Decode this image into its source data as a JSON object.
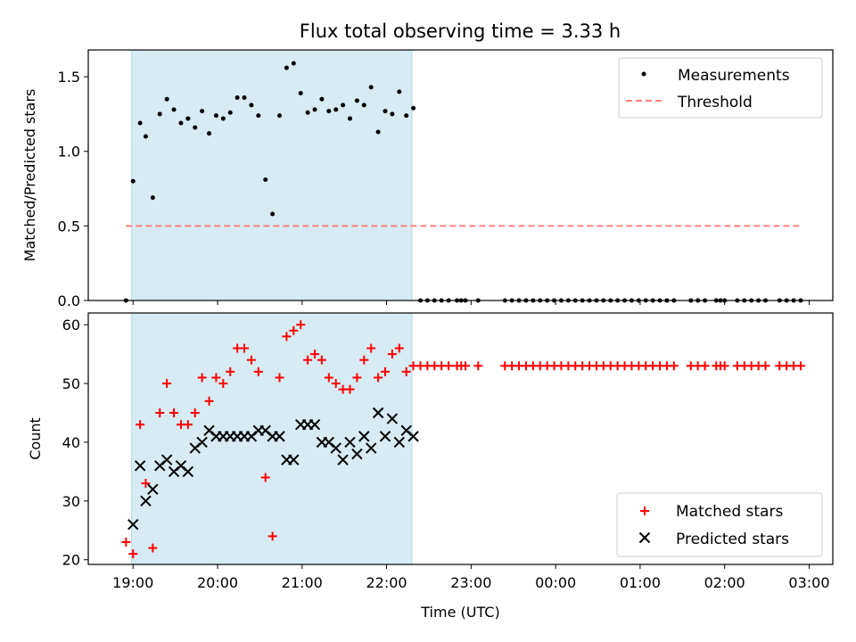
{
  "colors": {
    "highlight": "#add8e6",
    "threshold": "#ff7f7f",
    "measurements": "#000000",
    "matched": "#ff0000",
    "predicted": "#000000"
  },
  "chart_data": [
    {
      "type": "scatter",
      "title": "Flux total observing time = 3.33 h",
      "ylabel": "Matched/Predicted stars",
      "xlabel": "",
      "ylim": [
        0,
        1.68
      ],
      "yticks": [
        "0.0",
        "0.5",
        "1.0",
        "1.5"
      ],
      "grid": false,
      "legend_position": "top-right",
      "highlight_span": [
        "18:59",
        "22:18"
      ],
      "threshold": {
        "name": "Threshold",
        "value": 0.5,
        "x_range": [
          "18:55",
          "02:55"
        ]
      },
      "series": [
        {
          "name": "Measurements",
          "marker": "dot",
          "points": [
            [
              "18:55",
              0.0
            ],
            [
              "19:00",
              0.8
            ],
            [
              "19:05",
              1.19
            ],
            [
              "19:09",
              1.1
            ],
            [
              "19:14",
              0.69
            ],
            [
              "19:19",
              1.25
            ],
            [
              "19:24",
              1.35
            ],
            [
              "19:29",
              1.28
            ],
            [
              "19:34",
              1.19
            ],
            [
              "19:39",
              1.22
            ],
            [
              "19:44",
              1.16
            ],
            [
              "19:49",
              1.27
            ],
            [
              "19:54",
              1.12
            ],
            [
              "19:59",
              1.24
            ],
            [
              "20:04",
              1.22
            ],
            [
              "20:09",
              1.26
            ],
            [
              "20:14",
              1.36
            ],
            [
              "20:19",
              1.36
            ],
            [
              "20:24",
              1.31
            ],
            [
              "20:29",
              1.24
            ],
            [
              "20:34",
              0.81
            ],
            [
              "20:39",
              0.58
            ],
            [
              "20:44",
              1.24
            ],
            [
              "20:49",
              1.56
            ],
            [
              "20:54",
              1.59
            ],
            [
              "20:59",
              1.39
            ],
            [
              "21:04",
              1.26
            ],
            [
              "21:09",
              1.28
            ],
            [
              "21:14",
              1.35
            ],
            [
              "21:19",
              1.27
            ],
            [
              "21:24",
              1.28
            ],
            [
              "21:29",
              1.31
            ],
            [
              "21:34",
              1.22
            ],
            [
              "21:39",
              1.34
            ],
            [
              "21:44",
              1.31
            ],
            [
              "21:49",
              1.43
            ],
            [
              "21:54",
              1.13
            ],
            [
              "21:59",
              1.27
            ],
            [
              "22:04",
              1.25
            ],
            [
              "22:09",
              1.4
            ],
            [
              "22:14",
              1.24
            ],
            [
              "22:19",
              1.29
            ],
            [
              "22:24",
              0
            ],
            [
              "22:29",
              0
            ],
            [
              "22:34",
              0
            ],
            [
              "22:39",
              0
            ],
            [
              "22:44",
              0
            ],
            [
              "22:50",
              0
            ],
            [
              "22:53",
              0
            ],
            [
              "22:56",
              0
            ],
            [
              "23:05",
              0
            ],
            [
              "23:24",
              0
            ],
            [
              "23:29",
              0
            ],
            [
              "23:34",
              0
            ],
            [
              "23:39",
              0
            ],
            [
              "23:44",
              0
            ],
            [
              "23:49",
              0
            ],
            [
              "23:54",
              0
            ],
            [
              "23:59",
              0
            ],
            [
              "00:04",
              0
            ],
            [
              "00:09",
              0
            ],
            [
              "00:14",
              0
            ],
            [
              "00:19",
              0
            ],
            [
              "00:24",
              0
            ],
            [
              "00:29",
              0
            ],
            [
              "00:34",
              0
            ],
            [
              "00:39",
              0
            ],
            [
              "00:44",
              0
            ],
            [
              "00:49",
              0
            ],
            [
              "00:54",
              0
            ],
            [
              "00:59",
              0
            ],
            [
              "01:04",
              0
            ],
            [
              "01:09",
              0
            ],
            [
              "01:14",
              0
            ],
            [
              "01:19",
              0
            ],
            [
              "01:24",
              0
            ],
            [
              "01:36",
              0
            ],
            [
              "01:41",
              0
            ],
            [
              "01:46",
              0
            ],
            [
              "01:54",
              0
            ],
            [
              "01:57",
              0
            ],
            [
              "02:00",
              0
            ],
            [
              "02:09",
              0
            ],
            [
              "02:14",
              0
            ],
            [
              "02:19",
              0
            ],
            [
              "02:24",
              0
            ],
            [
              "02:29",
              0
            ],
            [
              "02:39",
              0
            ],
            [
              "02:44",
              0
            ],
            [
              "02:49",
              0
            ],
            [
              "02:54",
              0
            ]
          ]
        }
      ]
    },
    {
      "type": "scatter",
      "title": "",
      "ylabel": "Count",
      "xlabel": "Time (UTC)",
      "ylim": [
        19.2,
        62
      ],
      "yticks": [
        "20",
        "30",
        "40",
        "50",
        "60"
      ],
      "xticks": [
        "19:00",
        "20:00",
        "21:00",
        "22:00",
        "23:00",
        "00:00",
        "01:00",
        "02:00",
        "03:00"
      ],
      "grid": false,
      "legend_position": "bottom-right",
      "highlight_span": [
        "18:59",
        "22:18"
      ],
      "series": [
        {
          "name": "Matched stars",
          "marker": "plus",
          "points": [
            [
              "18:55",
              23
            ],
            [
              "19:00",
              21
            ],
            [
              "19:05",
              43
            ],
            [
              "19:09",
              33
            ],
            [
              "19:14",
              22
            ],
            [
              "19:19",
              45
            ],
            [
              "19:24",
              50
            ],
            [
              "19:29",
              45
            ],
            [
              "19:34",
              43
            ],
            [
              "19:39",
              43
            ],
            [
              "19:44",
              45
            ],
            [
              "19:49",
              51
            ],
            [
              "19:54",
              47
            ],
            [
              "19:59",
              51
            ],
            [
              "20:04",
              50
            ],
            [
              "20:09",
              52
            ],
            [
              "20:14",
              56
            ],
            [
              "20:19",
              56
            ],
            [
              "20:24",
              54
            ],
            [
              "20:29",
              52
            ],
            [
              "20:34",
              34
            ],
            [
              "20:39",
              24
            ],
            [
              "20:44",
              51
            ],
            [
              "20:49",
              58
            ],
            [
              "20:54",
              59
            ],
            [
              "20:59",
              60
            ],
            [
              "21:04",
              54
            ],
            [
              "21:09",
              55
            ],
            [
              "21:14",
              54
            ],
            [
              "21:19",
              51
            ],
            [
              "21:24",
              50
            ],
            [
              "21:29",
              49
            ],
            [
              "21:34",
              49
            ],
            [
              "21:39",
              51
            ],
            [
              "21:44",
              54
            ],
            [
              "21:49",
              56
            ],
            [
              "21:54",
              51
            ],
            [
              "21:59",
              52
            ],
            [
              "22:04",
              55
            ],
            [
              "22:09",
              56
            ],
            [
              "22:14",
              52
            ],
            [
              "22:19",
              53
            ],
            [
              "22:24",
              53
            ],
            [
              "22:29",
              53
            ],
            [
              "22:34",
              53
            ],
            [
              "22:39",
              53
            ],
            [
              "22:44",
              53
            ],
            [
              "22:50",
              53
            ],
            [
              "22:53",
              53
            ],
            [
              "22:56",
              53
            ],
            [
              "23:05",
              53
            ],
            [
              "23:24",
              53
            ],
            [
              "23:29",
              53
            ],
            [
              "23:34",
              53
            ],
            [
              "23:39",
              53
            ],
            [
              "23:44",
              53
            ],
            [
              "23:49",
              53
            ],
            [
              "23:54",
              53
            ],
            [
              "23:59",
              53
            ],
            [
              "00:04",
              53
            ],
            [
              "00:09",
              53
            ],
            [
              "00:14",
              53
            ],
            [
              "00:19",
              53
            ],
            [
              "00:24",
              53
            ],
            [
              "00:29",
              53
            ],
            [
              "00:34",
              53
            ],
            [
              "00:39",
              53
            ],
            [
              "00:44",
              53
            ],
            [
              "00:49",
              53
            ],
            [
              "00:54",
              53
            ],
            [
              "00:59",
              53
            ],
            [
              "01:04",
              53
            ],
            [
              "01:09",
              53
            ],
            [
              "01:14",
              53
            ],
            [
              "01:19",
              53
            ],
            [
              "01:24",
              53
            ],
            [
              "01:36",
              53
            ],
            [
              "01:41",
              53
            ],
            [
              "01:46",
              53
            ],
            [
              "01:54",
              53
            ],
            [
              "01:57",
              53
            ],
            [
              "02:00",
              53
            ],
            [
              "02:09",
              53
            ],
            [
              "02:14",
              53
            ],
            [
              "02:19",
              53
            ],
            [
              "02:24",
              53
            ],
            [
              "02:29",
              53
            ],
            [
              "02:39",
              53
            ],
            [
              "02:44",
              53
            ],
            [
              "02:49",
              53
            ],
            [
              "02:54",
              53
            ]
          ]
        },
        {
          "name": "Predicted stars",
          "marker": "x",
          "points": [
            [
              "19:00",
              26
            ],
            [
              "19:05",
              36
            ],
            [
              "19:09",
              30
            ],
            [
              "19:14",
              32
            ],
            [
              "19:19",
              36
            ],
            [
              "19:24",
              37
            ],
            [
              "19:29",
              35
            ],
            [
              "19:34",
              36
            ],
            [
              "19:39",
              35
            ],
            [
              "19:44",
              39
            ],
            [
              "19:49",
              40
            ],
            [
              "19:54",
              42
            ],
            [
              "19:59",
              41
            ],
            [
              "20:04",
              41
            ],
            [
              "20:09",
              41
            ],
            [
              "20:14",
              41
            ],
            [
              "20:19",
              41
            ],
            [
              "20:24",
              41
            ],
            [
              "20:29",
              42
            ],
            [
              "20:34",
              42
            ],
            [
              "20:39",
              41
            ],
            [
              "20:44",
              41
            ],
            [
              "20:49",
              37
            ],
            [
              "20:54",
              37
            ],
            [
              "20:59",
              43
            ],
            [
              "21:04",
              43
            ],
            [
              "21:09",
              43
            ],
            [
              "21:14",
              40
            ],
            [
              "21:19",
              40
            ],
            [
              "21:24",
              39
            ],
            [
              "21:29",
              37
            ],
            [
              "21:34",
              40
            ],
            [
              "21:39",
              38
            ],
            [
              "21:44",
              41
            ],
            [
              "21:49",
              39
            ],
            [
              "21:54",
              45
            ],
            [
              "21:59",
              41
            ],
            [
              "22:04",
              44
            ],
            [
              "22:09",
              40
            ],
            [
              "22:14",
              42
            ],
            [
              "22:19",
              41
            ]
          ]
        }
      ]
    }
  ]
}
